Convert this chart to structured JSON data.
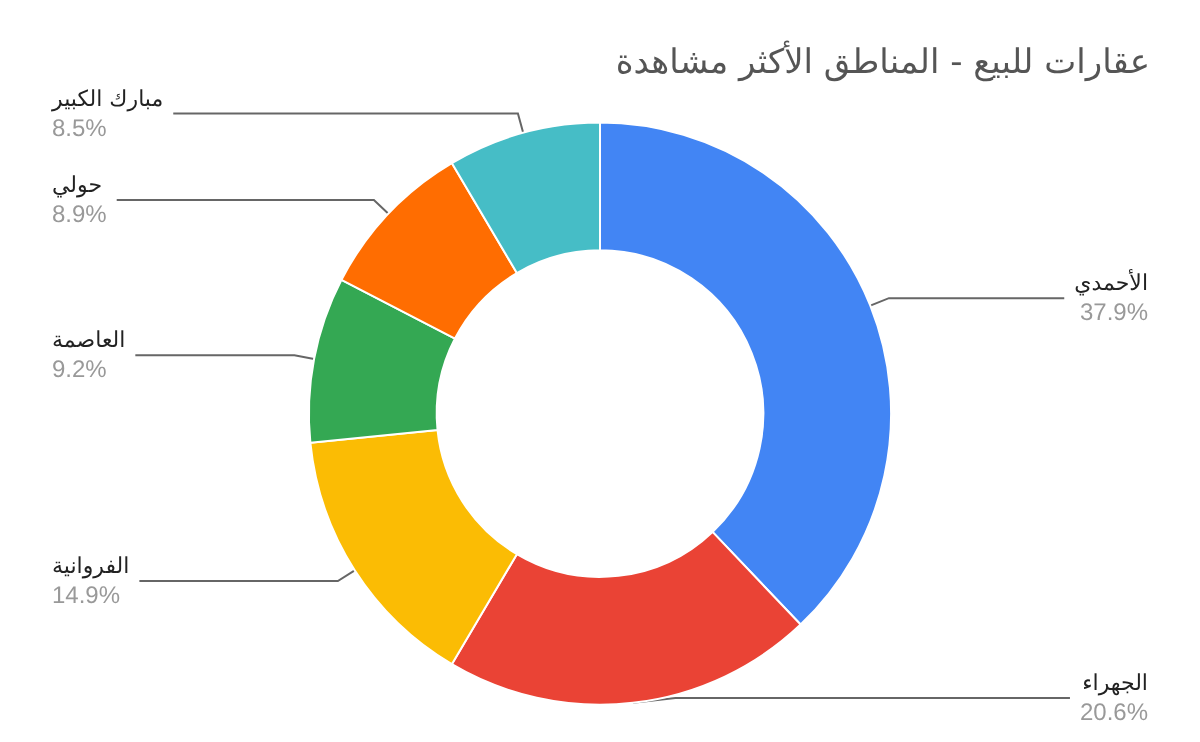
{
  "chart_data": {
    "type": "donut",
    "title": "عقارات للبيع - المناطق الأكثر مشاهدة",
    "categories": [
      "الأحمدي",
      "الجهراء",
      "الفروانية",
      "العاصمة",
      "حولي",
      "مبارك الكبير"
    ],
    "values": [
      37.9,
      20.6,
      14.9,
      9.2,
      8.9,
      8.5
    ],
    "value_labels": [
      "37.9%",
      "20.6%",
      "14.9%",
      "9.2%",
      "8.9%",
      "8.5%"
    ],
    "colors": [
      "#4285f4",
      "#ea4335",
      "#fbbc04",
      "#34a853",
      "#ff6d01",
      "#46bdc6"
    ],
    "legend": false
  }
}
